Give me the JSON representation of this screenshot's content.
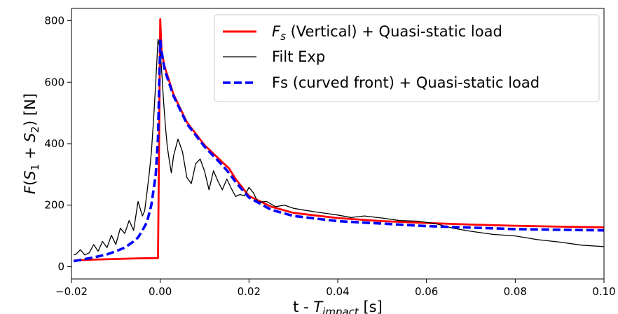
{
  "chart_data": {
    "type": "line",
    "title": "",
    "xlabel": "t  - T_impact [s]",
    "xlabel_parts": {
      "lead": "t  - ",
      "var": "T",
      "sub": "impact",
      "unit": " [s]"
    },
    "ylabel": "F(S1 + S2) [N]",
    "ylabel_parts": {
      "f": "F",
      "open": "(",
      "s1": "S",
      "sub1": "1",
      "plus": " + ",
      "s2": "S",
      "sub2": "2",
      "close": ")",
      "unit": " [N]"
    },
    "xlim": [
      -0.02,
      0.1
    ],
    "ylim": [
      -40,
      840
    ],
    "xticks": [
      -0.02,
      0.0,
      0.02,
      0.04,
      0.06,
      0.08,
      0.1
    ],
    "xtick_labels": [
      "−0.02",
      "0.00",
      "0.02",
      "0.04",
      "0.06",
      "0.08",
      "0.10"
    ],
    "yticks": [
      0,
      200,
      400,
      600,
      800
    ],
    "ytick_labels": [
      "0",
      "200",
      "400",
      "600",
      "800"
    ],
    "grid": false,
    "legend_position": "top-right",
    "series": [
      {
        "name": "F_s (Vertical) + Quasi-static load",
        "legend_parts": {
          "var": "F",
          "sub": "s",
          "rest": " (Vertical) + Quasi-static load"
        },
        "color": "#ff0000",
        "style": "solid",
        "x": [
          -0.0195,
          -0.015,
          -0.01,
          -0.005,
          -0.0005,
          0.0,
          0.0003,
          0.001,
          0.003,
          0.006,
          0.01,
          0.014,
          0.0155,
          0.017,
          0.02,
          0.025,
          0.03,
          0.04,
          0.05,
          0.06,
          0.07,
          0.08,
          0.09,
          0.1
        ],
        "y": [
          20,
          23,
          25,
          27,
          28,
          805,
          700,
          650,
          560,
          470,
          395,
          340,
          320,
          285,
          230,
          195,
          175,
          158,
          148,
          142,
          137,
          133,
          130,
          128
        ]
      },
      {
        "name": "Filt Exp",
        "color": "#000000",
        "style": "solid",
        "x": [
          -0.0195,
          -0.019,
          -0.018,
          -0.017,
          -0.016,
          -0.015,
          -0.014,
          -0.013,
          -0.012,
          -0.011,
          -0.01,
          -0.009,
          -0.008,
          -0.007,
          -0.006,
          -0.005,
          -0.004,
          -0.0035,
          -0.003,
          -0.0025,
          -0.002,
          -0.0015,
          -0.001,
          -0.0005,
          0.0,
          0.0004,
          0.0008,
          0.0012,
          0.0016,
          0.002,
          0.0025,
          0.003,
          0.004,
          0.005,
          0.006,
          0.007,
          0.008,
          0.009,
          0.01,
          0.011,
          0.012,
          0.013,
          0.014,
          0.015,
          0.016,
          0.017,
          0.018,
          0.019,
          0.02,
          0.021,
          0.022,
          0.024,
          0.026,
          0.028,
          0.03,
          0.032,
          0.035,
          0.038,
          0.04,
          0.043,
          0.046,
          0.05,
          0.054,
          0.058,
          0.062,
          0.066,
          0.07,
          0.075,
          0.08,
          0.085,
          0.09,
          0.095,
          0.1
        ],
        "y": [
          38,
          40,
          55,
          38,
          45,
          72,
          50,
          82,
          62,
          102,
          72,
          125,
          108,
          150,
          118,
          212,
          165,
          182,
          240,
          300,
          370,
          480,
          600,
          740,
          705,
          620,
          530,
          450,
          390,
          350,
          305,
          360,
          415,
          375,
          290,
          270,
          335,
          350,
          310,
          250,
          312,
          278,
          250,
          285,
          255,
          228,
          235,
          230,
          258,
          240,
          210,
          212,
          195,
          200,
          190,
          185,
          178,
          172,
          168,
          160,
          165,
          158,
          150,
          148,
          140,
          125,
          115,
          105,
          100,
          88,
          80,
          70,
          65
        ]
      },
      {
        "name": "Fs (curved front) + Quasi-static load",
        "color": "#0000ff",
        "style": "dashed",
        "x": [
          -0.0195,
          -0.015,
          -0.012,
          -0.01,
          -0.008,
          -0.006,
          -0.005,
          -0.004,
          -0.003,
          -0.002,
          -0.001,
          -0.0005,
          0.0,
          0.0003,
          0.001,
          0.003,
          0.006,
          0.01,
          0.014,
          0.0155,
          0.017,
          0.02,
          0.025,
          0.03,
          0.04,
          0.05,
          0.06,
          0.07,
          0.08,
          0.09,
          0.1
        ],
        "y": [
          18,
          30,
          40,
          50,
          62,
          82,
          95,
          118,
          145,
          200,
          300,
          420,
          735,
          700,
          640,
          555,
          465,
          390,
          330,
          305,
          275,
          225,
          185,
          165,
          148,
          140,
          132,
          127,
          122,
          120,
          118
        ]
      }
    ]
  }
}
